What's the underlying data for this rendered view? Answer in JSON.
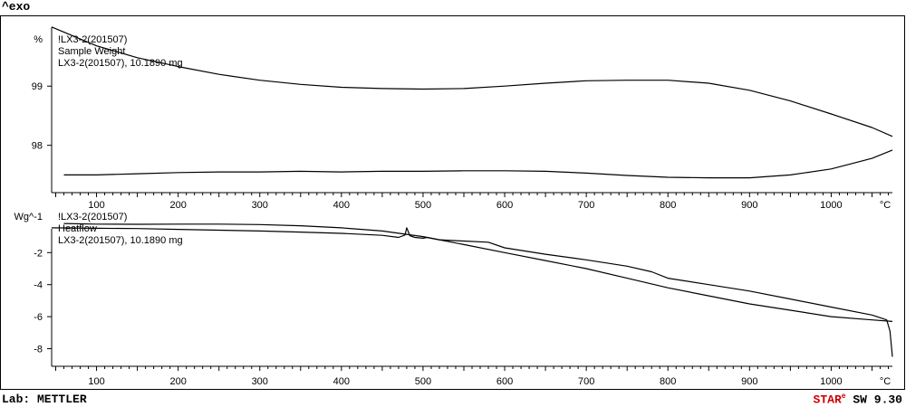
{
  "header": {
    "exo_label": "^exo"
  },
  "footer": {
    "lab": "Lab: METTLER",
    "brand_a": "STAR",
    "brand_b": "e",
    "software": " SW 9.30"
  },
  "chart_data": [
    {
      "type": "line",
      "panel": "weight",
      "ylabel": "%",
      "xunit": "°C",
      "xlim": [
        45,
        1075
      ],
      "ylim": [
        97.2,
        100.15
      ],
      "xticks": [
        100,
        200,
        300,
        400,
        500,
        600,
        700,
        800,
        900,
        1000
      ],
      "yticks": [
        98,
        99
      ],
      "legend": [
        "!LX3-2(201507)",
        "Sample Weight",
        "LX3-2(201507), 10.1890 mg"
      ],
      "series": [
        {
          "name": "heating",
          "x": [
            45,
            100,
            150,
            200,
            250,
            300,
            350,
            400,
            450,
            500,
            550,
            600,
            650,
            700,
            750,
            800,
            850,
            900,
            950,
            1000,
            1050,
            1075
          ],
          "y": [
            100.0,
            99.68,
            99.48,
            99.33,
            99.2,
            99.1,
            99.03,
            98.98,
            98.96,
            98.95,
            98.96,
            99.0,
            99.05,
            99.09,
            99.1,
            99.1,
            99.05,
            98.93,
            98.75,
            98.53,
            98.3,
            98.15
          ]
        },
        {
          "name": "cooling",
          "x": [
            1075,
            1050,
            1000,
            950,
            900,
            850,
            800,
            750,
            700,
            650,
            600,
            550,
            500,
            450,
            400,
            350,
            300,
            250,
            200,
            150,
            100,
            60
          ],
          "y": [
            97.92,
            97.78,
            97.6,
            97.5,
            97.45,
            97.45,
            97.46,
            97.49,
            97.53,
            97.56,
            97.57,
            97.57,
            97.56,
            97.56,
            97.55,
            97.56,
            97.55,
            97.55,
            97.54,
            97.52,
            97.5,
            97.5
          ]
        }
      ]
    },
    {
      "type": "line",
      "panel": "heatflow",
      "ylabel": "Wg^-1",
      "xunit": "°C",
      "xlim": [
        45,
        1075
      ],
      "ylim": [
        -9.1,
        0.05
      ],
      "xticks": [
        100,
        200,
        300,
        400,
        500,
        600,
        700,
        800,
        900,
        1000
      ],
      "yticks": [
        -2,
        -4,
        -6,
        -8
      ],
      "legend": [
        "!LX3-2(201507)",
        "Heatflow",
        "LX3-2(201507), 10.1890 mg"
      ],
      "series": [
        {
          "name": "heating",
          "x": [
            45,
            100,
            150,
            200,
            250,
            300,
            350,
            400,
            450,
            470,
            478,
            480,
            484,
            490,
            500,
            505,
            520,
            550,
            580,
            600,
            650,
            700,
            750,
            780,
            800,
            850,
            900,
            950,
            1000,
            1050,
            1068,
            1072,
            1075
          ],
          "y": [
            -0.45,
            -0.48,
            -0.5,
            -0.55,
            -0.6,
            -0.65,
            -0.72,
            -0.8,
            -0.92,
            -1.05,
            -0.9,
            -0.45,
            -0.95,
            -1.05,
            -1.1,
            -1.05,
            -1.2,
            -1.28,
            -1.35,
            -1.7,
            -2.1,
            -2.45,
            -2.85,
            -3.2,
            -3.6,
            -4.0,
            -4.4,
            -4.9,
            -5.4,
            -5.9,
            -6.2,
            -6.9,
            -8.5
          ]
        },
        {
          "name": "cooling",
          "x": [
            1075,
            1050,
            1000,
            950,
            900,
            850,
            800,
            750,
            700,
            650,
            600,
            550,
            500,
            450,
            400,
            350,
            300,
            250,
            200,
            150,
            100,
            60
          ],
          "y": [
            -6.3,
            -6.2,
            -6.0,
            -5.6,
            -5.2,
            -4.7,
            -4.2,
            -3.6,
            -3.0,
            -2.5,
            -2.0,
            -1.5,
            -1.0,
            -0.65,
            -0.45,
            -0.32,
            -0.25,
            -0.22,
            -0.22,
            -0.23,
            -0.22,
            -0.18
          ]
        }
      ]
    }
  ]
}
